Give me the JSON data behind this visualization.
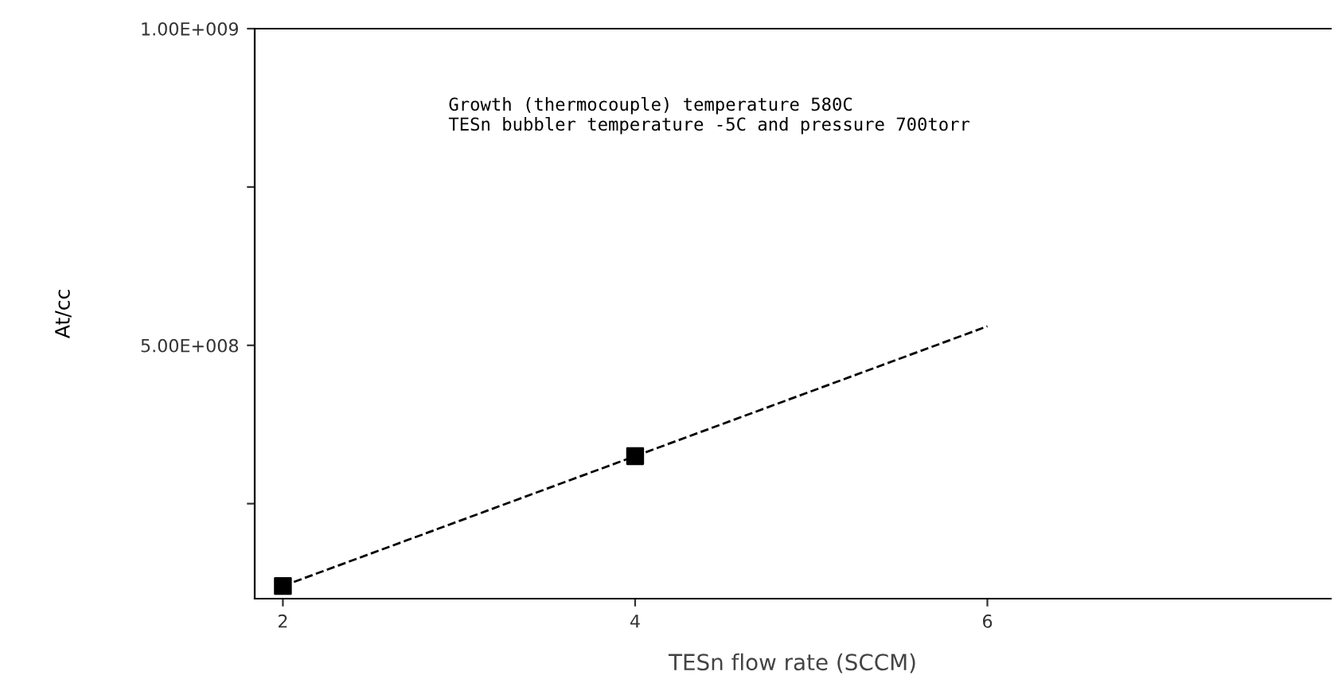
{
  "chart_data": {
    "type": "scatter",
    "xlabel": "TESn flow rate (SCCM)",
    "ylabel": "At/cc",
    "annotations": [
      "Growth (thermocouple) temperature 580C\nTESn bubbler temperature -5C and pressure 700torr"
    ],
    "xlim": [
      1.84,
      7.95
    ],
    "xticks": [
      2,
      4,
      6
    ],
    "ylim": [
      100000000,
      1000000000
    ],
    "yticks": [
      {
        "value": 250000000,
        "label": null
      },
      {
        "value": 500000000,
        "label": "5.00E+008"
      },
      {
        "value": 750000000,
        "label": null
      },
      {
        "value": 1000000000,
        "label": "1.00E+009"
      }
    ],
    "grid": false,
    "legend": false,
    "series": [
      {
        "color": "#000000",
        "marker": "square",
        "x": [
          2,
          4
        ],
        "values": [
          120000000,
          325000000
        ]
      },
      {
        "type": "line",
        "color": "#000000",
        "marker": "none",
        "line_style": "dashed",
        "x": [
          2,
          4,
          6
        ],
        "values": [
          120000000,
          325000000,
          530000000
        ]
      }
    ]
  }
}
